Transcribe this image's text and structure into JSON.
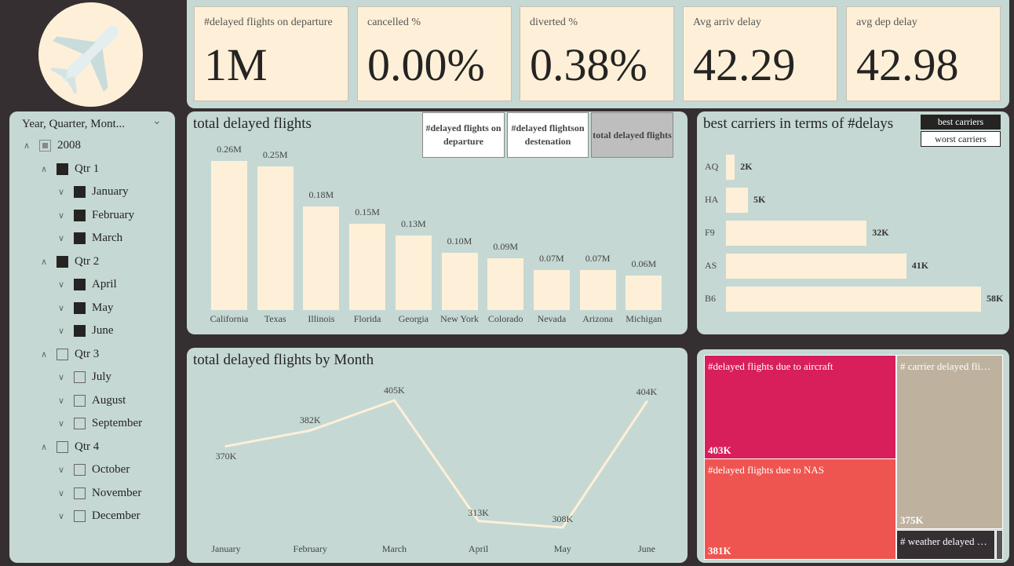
{
  "kpis": [
    {
      "title": "#delayed flights on departure",
      "value": "1M"
    },
    {
      "title": "cancelled %",
      "value": "0.00%"
    },
    {
      "title": "diverted %",
      "value": "0.38%"
    },
    {
      "title": "Avg arriv delay",
      "value": "42.29"
    },
    {
      "title": "avg dep delay",
      "value": "42.98"
    }
  ],
  "slicer": {
    "title": "Year, Quarter, Mont...",
    "items": [
      {
        "label": "2008",
        "level": 0,
        "state": "part"
      },
      {
        "label": "Qtr 1",
        "level": 1,
        "state": "on"
      },
      {
        "label": "January",
        "level": 2,
        "state": "on"
      },
      {
        "label": "February",
        "level": 2,
        "state": "on"
      },
      {
        "label": "March",
        "level": 2,
        "state": "on"
      },
      {
        "label": "Qtr 2",
        "level": 1,
        "state": "on"
      },
      {
        "label": "April",
        "level": 2,
        "state": "on"
      },
      {
        "label": "May",
        "level": 2,
        "state": "on"
      },
      {
        "label": "June",
        "level": 2,
        "state": "on"
      },
      {
        "label": "Qtr 3",
        "level": 1,
        "state": "off"
      },
      {
        "label": "July",
        "level": 2,
        "state": "off"
      },
      {
        "label": "August",
        "level": 2,
        "state": "off"
      },
      {
        "label": "September",
        "level": 2,
        "state": "off"
      },
      {
        "label": "Qtr 4",
        "level": 1,
        "state": "off"
      },
      {
        "label": "October",
        "level": 2,
        "state": "off"
      },
      {
        "label": "November",
        "level": 2,
        "state": "off"
      },
      {
        "label": "December",
        "level": 2,
        "state": "off"
      }
    ]
  },
  "state_chart": {
    "title": "total delayed flights",
    "toggles": [
      "#delayed flights on departure",
      "#delayed flightson destenation",
      "total delayed flights"
    ]
  },
  "carriers": {
    "title": "best carriers in terms of #delays",
    "toggles": [
      "best carriers",
      "worst carriers"
    ]
  },
  "month_chart": {
    "title": "total delayed flights by Month"
  },
  "treemap": {
    "items": [
      {
        "label": "#delayed flights due to aircraft",
        "value": "403K",
        "color": "#d81e5b"
      },
      {
        "label": "#delayed flights due to NAS",
        "value": "381K",
        "color": "#ef5550"
      },
      {
        "label": "# carrier delayed fli…",
        "value": "375K",
        "color": "#beb29e"
      },
      {
        "label": "# weather delayed …",
        "value": "",
        "color": "#352f31"
      }
    ]
  },
  "chart_data": [
    {
      "type": "bar",
      "title": "total delayed flights",
      "categories": [
        "California",
        "Texas",
        "Illinois",
        "Florida",
        "Georgia",
        "New York",
        "Colorado",
        "Nevada",
        "Arizona",
        "Michigan"
      ],
      "values": [
        0.26,
        0.25,
        0.18,
        0.15,
        0.13,
        0.1,
        0.09,
        0.07,
        0.07,
        0.06
      ],
      "labels": [
        "0.26M",
        "0.25M",
        "0.18M",
        "0.15M",
        "0.13M",
        "0.10M",
        "0.09M",
        "0.07M",
        "0.07M",
        "0.06M"
      ],
      "unit": "M"
    },
    {
      "type": "bar",
      "orientation": "horizontal",
      "title": "best carriers in terms of #delays",
      "categories": [
        "AQ",
        "HA",
        "F9",
        "AS",
        "B6"
      ],
      "values": [
        2,
        5,
        32,
        41,
        58
      ],
      "labels": [
        "2K",
        "5K",
        "32K",
        "41K",
        "58K"
      ],
      "unit": "K"
    },
    {
      "type": "line",
      "title": "total delayed flights by Month",
      "categories": [
        "January",
        "February",
        "March",
        "April",
        "May",
        "June"
      ],
      "values": [
        370,
        382,
        405,
        313,
        308,
        404
      ],
      "labels": [
        "370K",
        "382K",
        "405K",
        "313K",
        "308K",
        "404K"
      ],
      "unit": "K"
    }
  ]
}
